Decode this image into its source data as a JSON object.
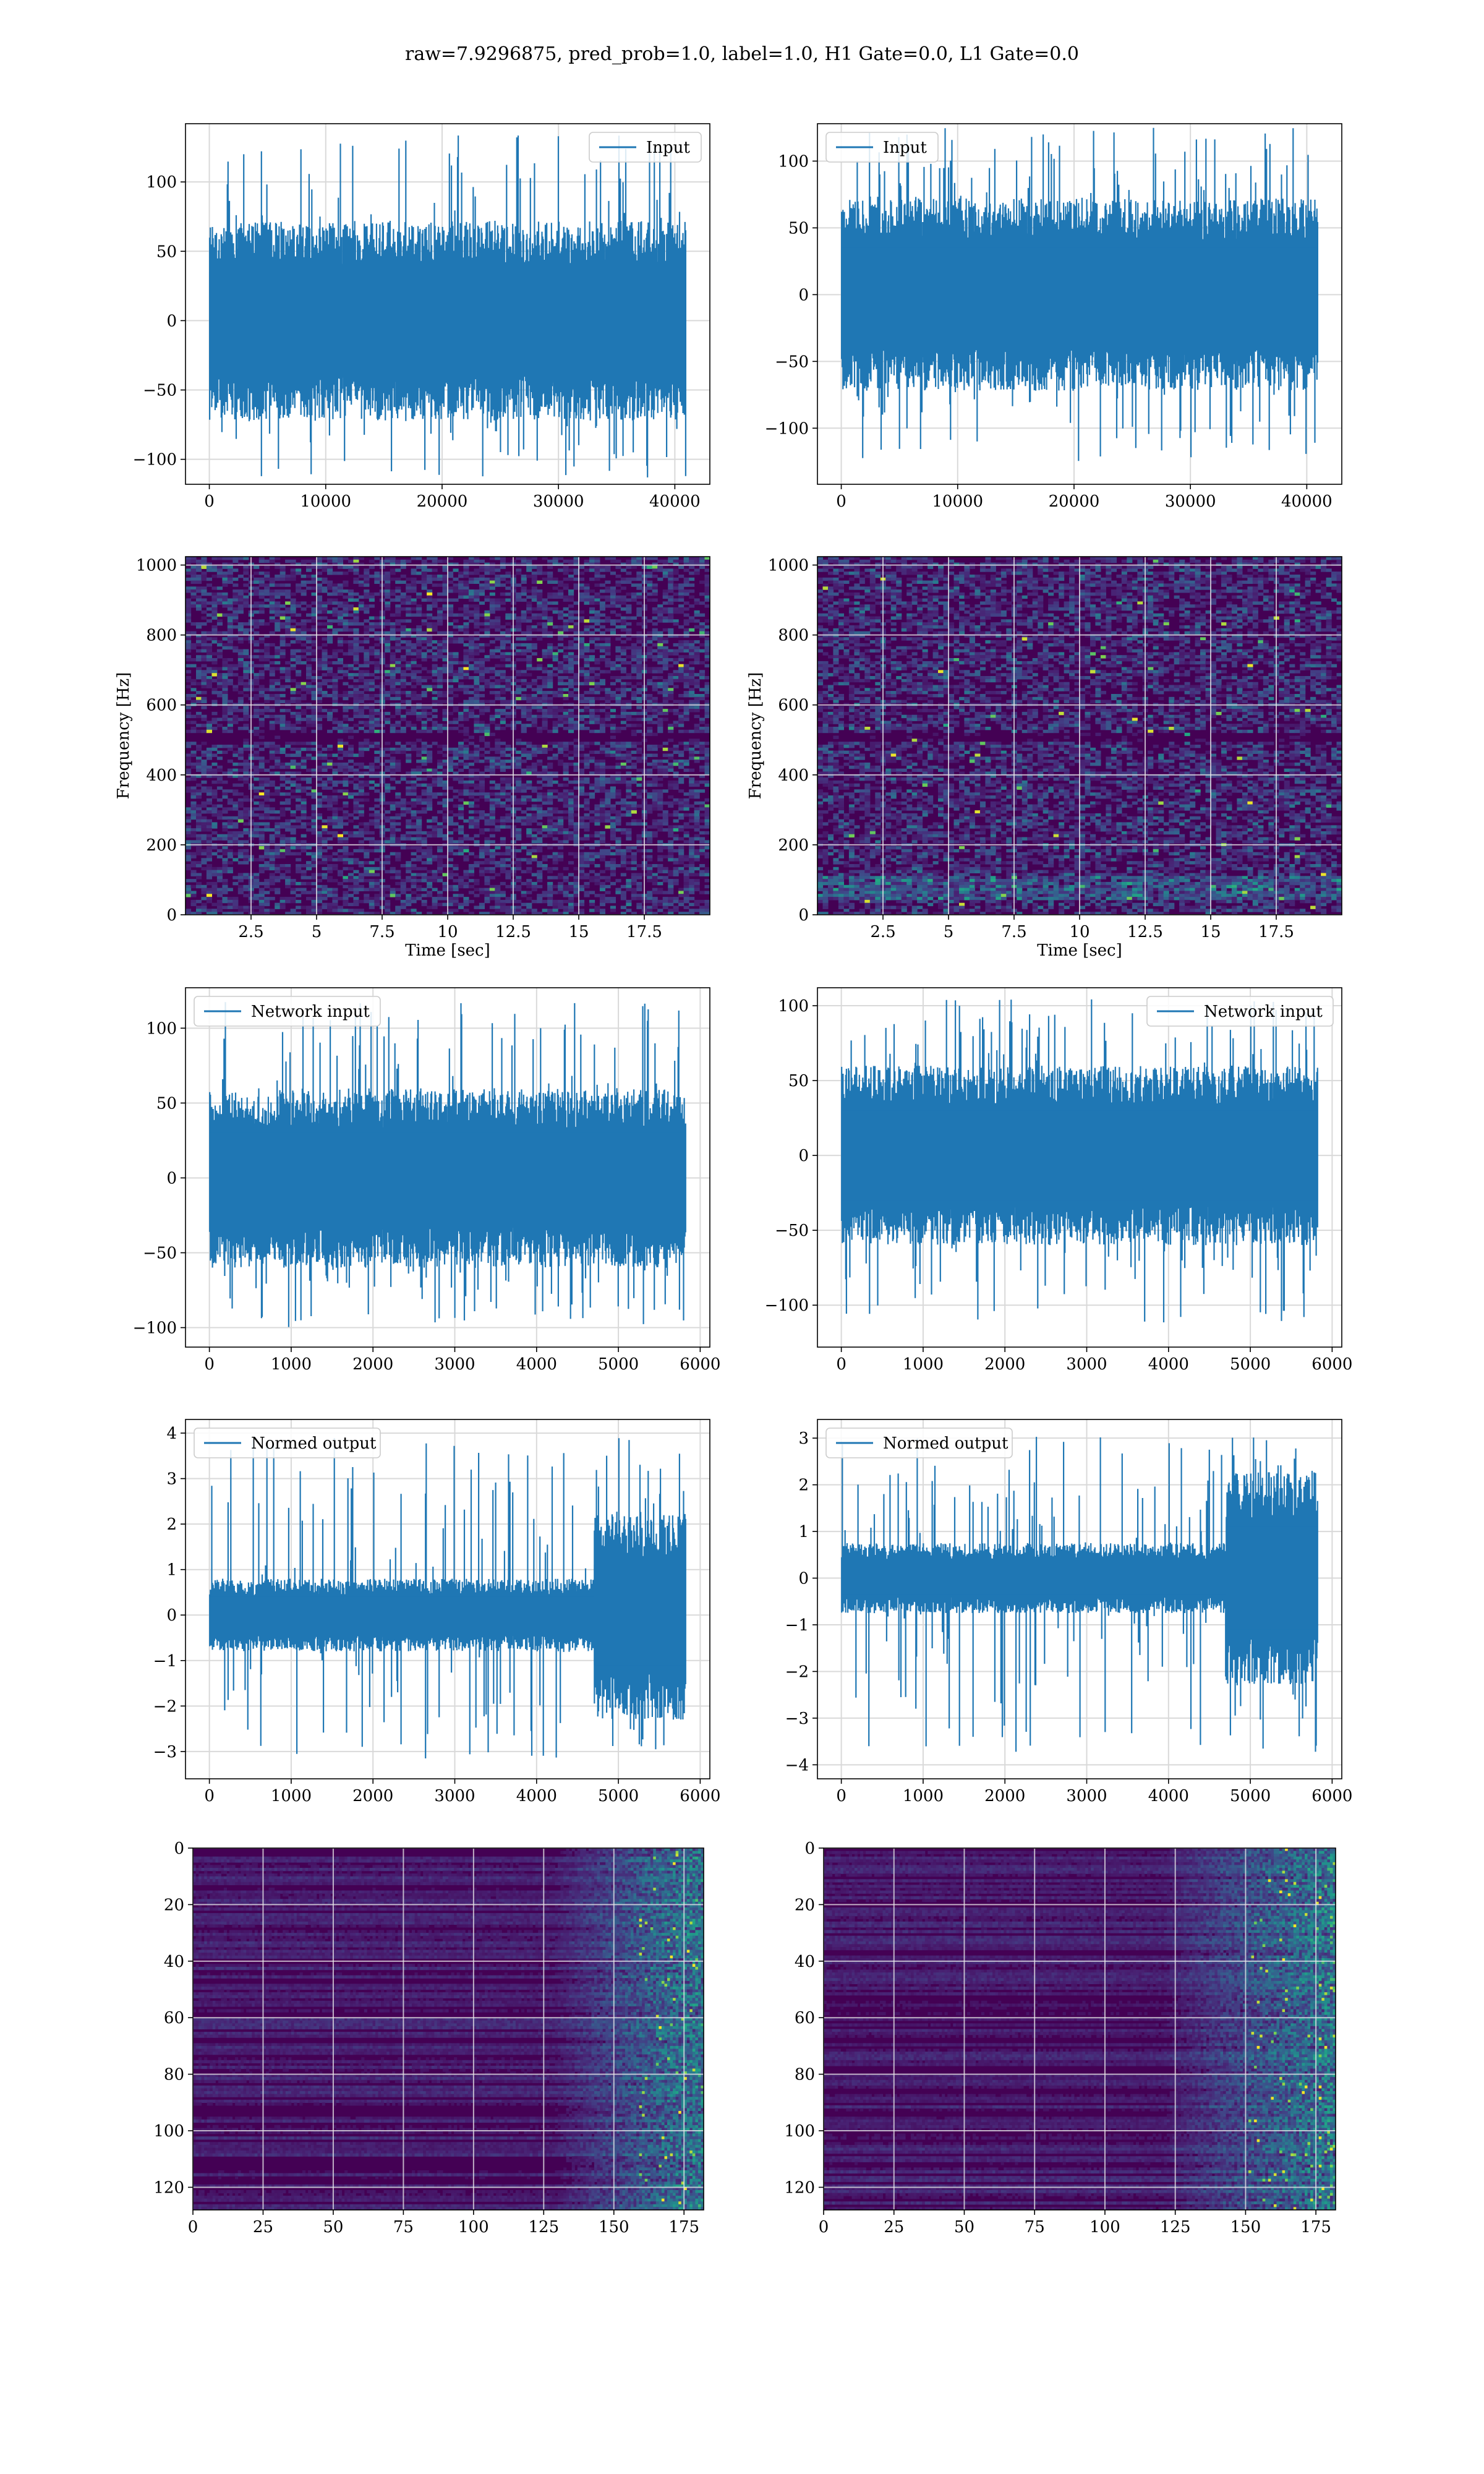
{
  "figure": {
    "title": "raw=7.9296875, pred_prob=1.0, label=1.0, H1 Gate=0.0, L1 Gate=0.0",
    "line_color": "#1f77b4"
  },
  "chart_data": [
    {
      "id": "r1c1",
      "type": "line",
      "legend": "Input",
      "legend_loc": "upper right",
      "xlim": [
        -2048,
        43008
      ],
      "ylim": [
        -118,
        142
      ],
      "xticks": [
        0,
        10000,
        20000,
        30000,
        40000
      ],
      "yticks": [
        -100,
        -50,
        0,
        50,
        100
      ],
      "grid": true,
      "signal": {
        "n": 40960,
        "amplitude": 72,
        "core": 35,
        "max": 135,
        "min": -115
      }
    },
    {
      "id": "r1c2",
      "type": "line",
      "legend": "Input",
      "legend_loc": "upper left",
      "xlim": [
        -2048,
        43008
      ],
      "ylim": [
        -142,
        128
      ],
      "xticks": [
        0,
        10000,
        20000,
        30000,
        40000
      ],
      "yticks": [
        -100,
        -50,
        0,
        50,
        100
      ],
      "grid": true,
      "signal": {
        "n": 40960,
        "amplitude": 72,
        "core": 35,
        "max": 125,
        "min": -125
      }
    },
    {
      "id": "r2c1",
      "type": "heatmap",
      "xlabel": "Time [sec]",
      "ylabel": "Frequency [Hz]",
      "xlim": [
        0,
        20
      ],
      "ylim": [
        0,
        1024
      ],
      "xticks": [
        2.5,
        5.0,
        7.5,
        10.0,
        12.5,
        15.0,
        17.5
      ],
      "yticks": [
        0,
        200,
        400,
        600,
        800,
        1000
      ],
      "grid": true,
      "colormap": "viridis",
      "band_hz": [
        500,
        512
      ],
      "low_freq_emphasis": false
    },
    {
      "id": "r2c2",
      "type": "heatmap",
      "xlabel": "Time [sec]",
      "ylabel": "Frequency [Hz]",
      "xlim": [
        0,
        20
      ],
      "ylim": [
        0,
        1024
      ],
      "xticks": [
        2.5,
        5.0,
        7.5,
        10.0,
        12.5,
        15.0,
        17.5
      ],
      "yticks": [
        0,
        200,
        400,
        600,
        800,
        1000
      ],
      "grid": true,
      "colormap": "viridis",
      "band_hz": [
        500,
        512
      ],
      "low_freq_emphasis": true
    },
    {
      "id": "r3c1",
      "type": "line",
      "legend": "Network input",
      "legend_loc": "upper left",
      "xlim": [
        -292,
        6118
      ],
      "ylim": [
        -113,
        127
      ],
      "xticks": [
        0,
        1000,
        2000,
        3000,
        4000,
        5000,
        6000
      ],
      "yticks": [
        -100,
        -50,
        0,
        50,
        100
      ],
      "grid": true,
      "signal": {
        "n": 5826,
        "amplitude": 60,
        "core": 30,
        "max": 120,
        "min": -100
      }
    },
    {
      "id": "r3c2",
      "type": "line",
      "legend": "Network input",
      "legend_loc": "upper right",
      "xlim": [
        -292,
        6118
      ],
      "ylim": [
        -128,
        112
      ],
      "xticks": [
        0,
        1000,
        2000,
        3000,
        4000,
        5000,
        6000
      ],
      "yticks": [
        -100,
        -50,
        0,
        50,
        100
      ],
      "grid": true,
      "signal": {
        "n": 5826,
        "amplitude": 60,
        "core": 30,
        "max": 105,
        "min": -112
      }
    },
    {
      "id": "r4c1",
      "type": "line",
      "legend": "Normed output",
      "legend_loc": "upper left",
      "xlim": [
        -292,
        6118
      ],
      "ylim": [
        -3.6,
        4.3
      ],
      "xticks": [
        0,
        1000,
        2000,
        3000,
        4000,
        5000,
        6000
      ],
      "yticks": [
        -3,
        -2,
        -1,
        0,
        1,
        2,
        3,
        4
      ],
      "grid": true,
      "signal": {
        "n": 5826,
        "amplitude": 0.8,
        "core": 0.4,
        "change_at": 4700,
        "amplitude_after": 2.3,
        "core_after": 1.1,
        "max": 3.9,
        "min": -3.2
      }
    },
    {
      "id": "r4c2",
      "type": "line",
      "legend": "Normed output",
      "legend_loc": "upper left",
      "xlim": [
        -292,
        6118
      ],
      "ylim": [
        -4.3,
        3.4
      ],
      "xticks": [
        0,
        1000,
        2000,
        3000,
        4000,
        5000,
        6000
      ],
      "yticks": [
        -4,
        -3,
        -2,
        -1,
        0,
        1,
        2,
        3
      ],
      "grid": true,
      "signal": {
        "n": 5826,
        "amplitude": 0.75,
        "core": 0.35,
        "change_at": 4700,
        "amplitude_after": 2.3,
        "core_after": 1.1,
        "max": 3.1,
        "min": -3.8
      }
    },
    {
      "id": "r5c1",
      "type": "heatmap",
      "xlim": [
        0,
        182
      ],
      "ylim": [
        128,
        0
      ],
      "xticks": [
        0,
        25,
        50,
        75,
        100,
        125,
        150,
        175
      ],
      "yticks": [
        0,
        20,
        40,
        60,
        80,
        100,
        120
      ],
      "grid": true,
      "colormap": "viridis",
      "columns": 182,
      "rows": 128,
      "activity_onset": 128
    },
    {
      "id": "r5c2",
      "type": "heatmap",
      "xlim": [
        0,
        182
      ],
      "ylim": [
        128,
        0
      ],
      "xticks": [
        0,
        25,
        50,
        75,
        100,
        125,
        150,
        175
      ],
      "yticks": [
        0,
        20,
        40,
        60,
        80,
        100,
        120
      ],
      "grid": true,
      "colormap": "viridis",
      "columns": 182,
      "rows": 128,
      "activity_onset": 120
    }
  ]
}
